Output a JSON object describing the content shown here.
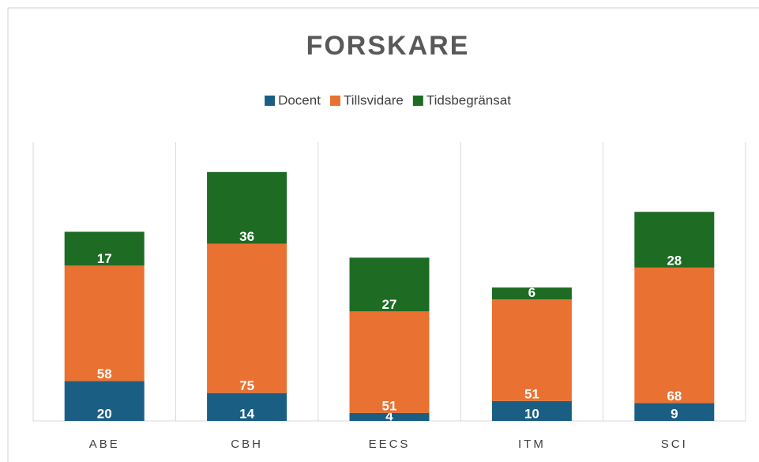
{
  "chart_data": {
    "type": "stacked_bar",
    "title": "FORSKARE",
    "categories": [
      "ABE",
      "CBH",
      "EECS",
      "ITM",
      "SCI"
    ],
    "series": [
      {
        "name": "Docent",
        "color": "#1b5e83",
        "values": [
          20,
          14,
          4,
          10,
          9
        ]
      },
      {
        "name": "Tillsvidare",
        "color": "#e97132",
        "values": [
          58,
          75,
          51,
          51,
          68
        ]
      },
      {
        "name": "Tidsbegränsat",
        "color": "#1e6b24",
        "values": [
          17,
          36,
          27,
          6,
          28
        ]
      }
    ],
    "ylim": [
      0,
      140
    ],
    "legend": "top"
  }
}
